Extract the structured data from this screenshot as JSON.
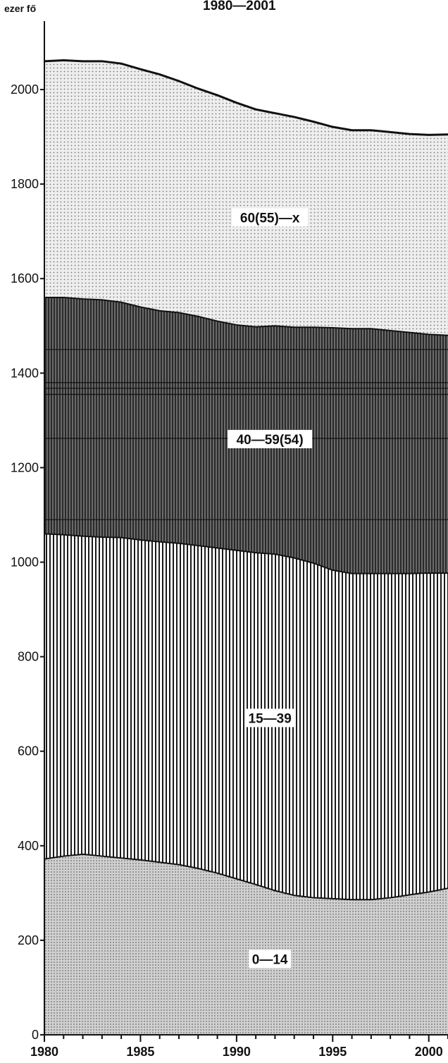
{
  "header": {
    "unit": "ezer fő",
    "period": "1980—2001"
  },
  "chart_data": {
    "type": "area",
    "stacked": true,
    "title": "1980—2001",
    "ylabel": "ezer fő",
    "xlabel": "",
    "xlim": [
      1980,
      2001
    ],
    "ylim": [
      0,
      2100
    ],
    "x_ticks": [
      1980,
      1985,
      1990,
      1995,
      2000
    ],
    "y_ticks": [
      0,
      200,
      400,
      600,
      800,
      1000,
      1200,
      1400,
      1600,
      1800,
      2000
    ],
    "grid": false,
    "legend": "none (labels printed inside bands)",
    "x": [
      1980,
      1981,
      1982,
      1983,
      1984,
      1985,
      1986,
      1987,
      1988,
      1989,
      1990,
      1991,
      1992,
      1993,
      1994,
      1995,
      1996,
      1997,
      1998,
      1999,
      2000,
      2001
    ],
    "series": [
      {
        "name": "0—14",
        "fill": "#c8c8c8",
        "values": [
          372,
          378,
          382,
          378,
          374,
          370,
          365,
          360,
          352,
          342,
          330,
          318,
          305,
          295,
          290,
          288,
          286,
          286,
          290,
          296,
          302,
          310
        ]
      },
      {
        "name": "15—39",
        "fill": "#d6d6d6",
        "values": [
          688,
          680,
          673,
          675,
          678,
          677,
          678,
          680,
          683,
          688,
          695,
          702,
          712,
          714,
          708,
          695,
          690,
          690,
          686,
          680,
          675,
          667
        ]
      },
      {
        "name": "40—59(54)",
        "fill": "#4a4a4a",
        "values": [
          500,
          502,
          502,
          502,
          498,
          493,
          489,
          488,
          485,
          480,
          477,
          478,
          483,
          488,
          499,
          513,
          518,
          518,
          514,
          510,
          505,
          503
        ]
      },
      {
        "name": "60(55)—x",
        "fill": "#ececec",
        "values": [
          500,
          502,
          503,
          505,
          505,
          503,
          500,
          490,
          482,
          478,
          470,
          460,
          450,
          445,
          435,
          425,
          420,
          420,
          420,
          420,
          422,
          425
        ]
      }
    ],
    "band_labels": [
      "0—14",
      "15—39",
      "40—59(54)",
      "60(55)—x"
    ]
  }
}
